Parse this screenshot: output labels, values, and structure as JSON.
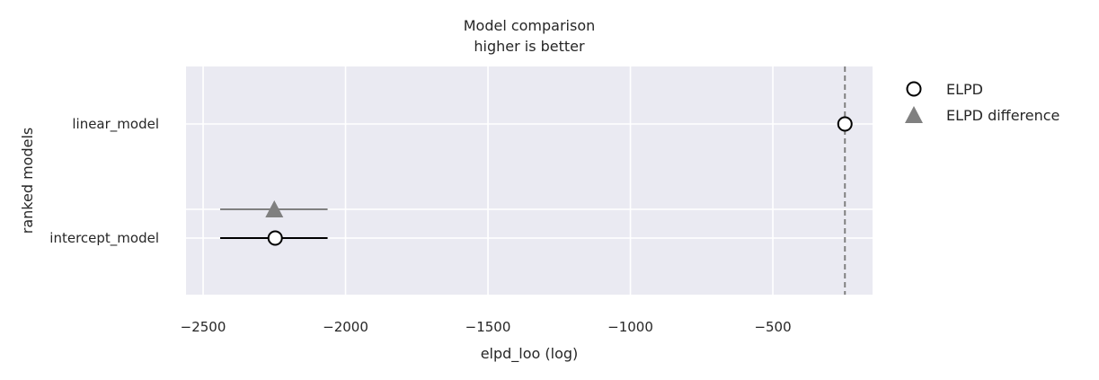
{
  "chart_data": {
    "type": "scatter",
    "title": "Model comparison",
    "subtitle": "higher is better",
    "xlabel": "elpd_loo (log)",
    "ylabel": "ranked models",
    "xlim": [
      -2560,
      -150
    ],
    "x_ticks": [
      -2500,
      -2000,
      -1500,
      -1000,
      -500
    ],
    "x_tick_labels": [
      "−2500",
      "−2000",
      "−1500",
      "−1000",
      "−500"
    ],
    "models": [
      "linear_model",
      "intercept_model"
    ],
    "grid": true,
    "legend_placement": "outside right",
    "series": [
      {
        "name": "ELPD",
        "marker": "circle-open",
        "color": "#000000",
        "points": [
          {
            "model": "linear_model",
            "x": -247,
            "err_low": null,
            "err_high": null
          },
          {
            "model": "intercept_model",
            "x": -2247,
            "err_low": -2440,
            "err_high": -2063
          }
        ]
      },
      {
        "name": "ELPD difference",
        "marker": "triangle",
        "color": "#808080",
        "points": [
          {
            "model": "intercept_model",
            "x": -2250,
            "err_low": -2440,
            "err_high": -2063
          }
        ]
      }
    ],
    "reference_line": {
      "x": -247,
      "style": "dashed",
      "color": "#808080"
    },
    "colors": {
      "plot_bg": "#eaeaf2",
      "grid": "#ffffff",
      "text": "#262626"
    }
  }
}
